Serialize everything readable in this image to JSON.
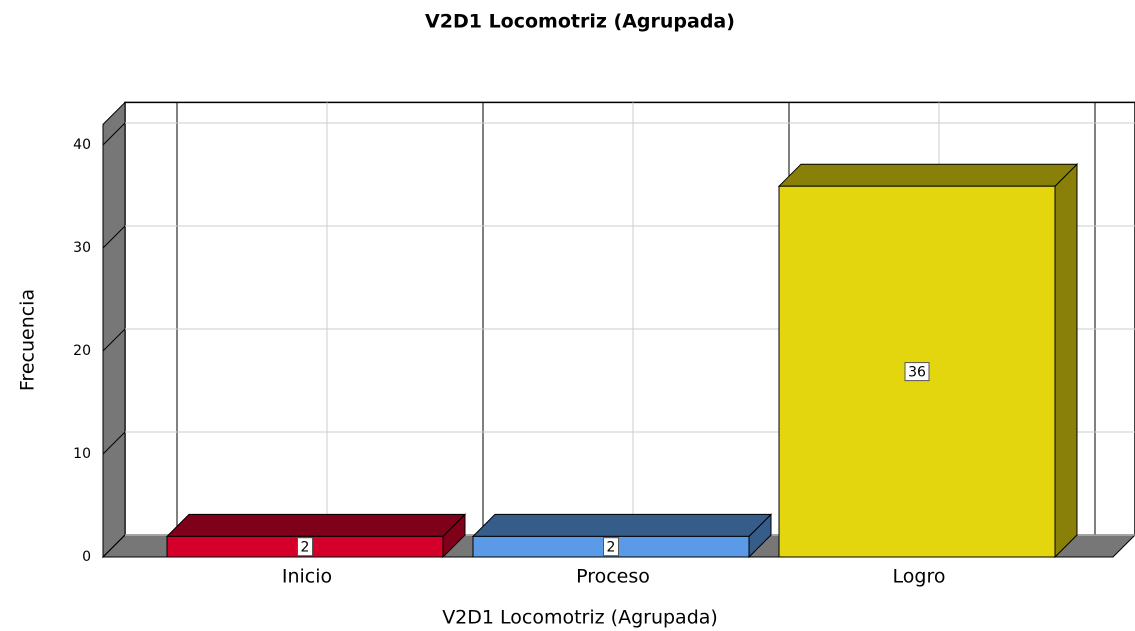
{
  "chart_data": {
    "type": "bar3d",
    "title": "V2D1 Locomotriz (Agrupada)",
    "x_label": "V2D1 Locomotriz (Agrupada)",
    "y_label": "Frecuencia",
    "categories": [
      "Inicio",
      "Proceso",
      "Logro"
    ],
    "values": [
      2,
      2,
      36
    ],
    "colors": [
      "#d4002a",
      "#5a9ae6",
      "#e3d60e"
    ],
    "ylim": [
      0,
      42
    ],
    "yticks": [
      0,
      10,
      20,
      30,
      40
    ],
    "grid": true
  }
}
